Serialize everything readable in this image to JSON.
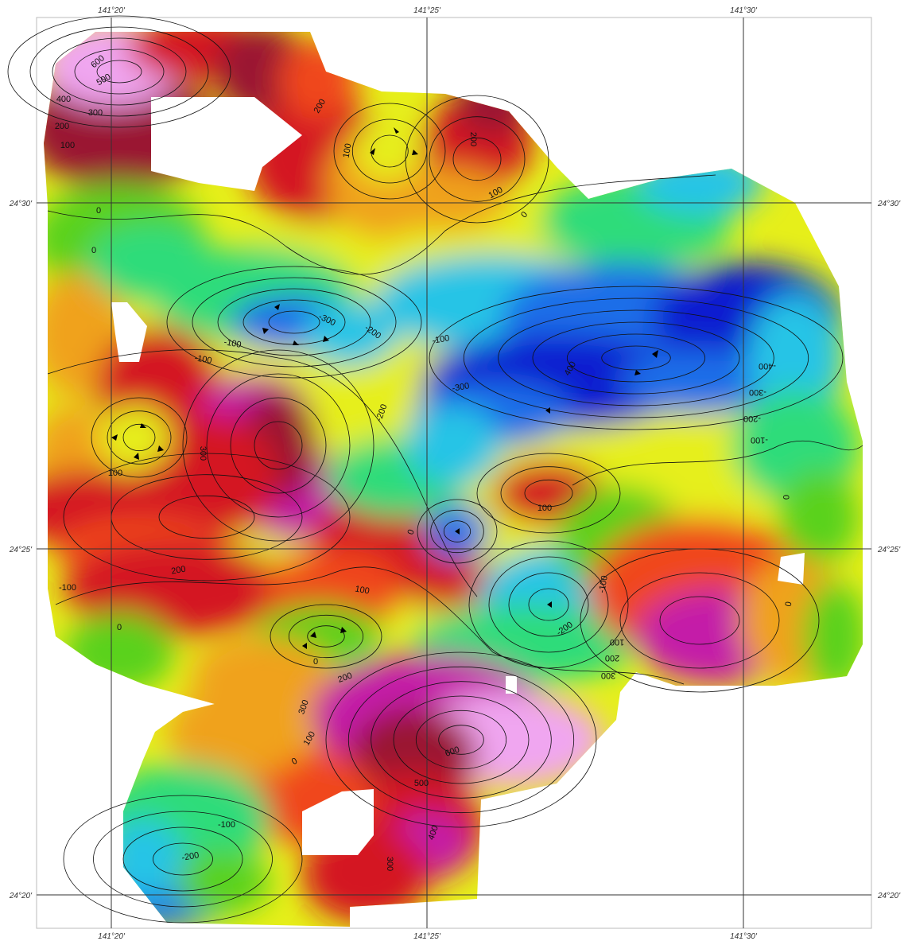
{
  "graticule": {
    "top_lon_labels": [
      "141°20'",
      "141°25'",
      "141°30'"
    ],
    "bottom_lon_labels": [
      "141°20'",
      "141°25'",
      "141°30'"
    ],
    "left_lat_labels": [
      "24°30'",
      "24°25'",
      "24°20'"
    ],
    "right_lat_labels": [
      "24°30'",
      "24°25'",
      "24°20'"
    ]
  },
  "color_scale": {
    "stops": [
      {
        "value": -450,
        "color": "#0a1fd0"
      },
      {
        "value": -300,
        "color": "#1f6ee8"
      },
      {
        "value": -200,
        "color": "#26c4e6"
      },
      {
        "value": -100,
        "color": "#2fdc7a"
      },
      {
        "value": 0,
        "color": "#5ad21a"
      },
      {
        "value": 50,
        "color": "#e6ef1a"
      },
      {
        "value": 100,
        "color": "#f0a21c"
      },
      {
        "value": 200,
        "color": "#f0461c"
      },
      {
        "value": 300,
        "color": "#d41820"
      },
      {
        "value": 400,
        "color": "#9a1230"
      },
      {
        "value": 500,
        "color": "#c41aa8"
      },
      {
        "value": 650,
        "color": "#f0a6f0"
      }
    ]
  },
  "contour_labels": [
    "600",
    "500",
    "400",
    "300",
    "200",
    "100",
    "200",
    "100",
    "200",
    "100",
    "0",
    "0",
    "0",
    "-300",
    "-200",
    "-100",
    "-100",
    "-100",
    "-300",
    "-200",
    "400",
    "-400",
    "-300",
    "-200",
    "-100",
    "300",
    "100",
    "100",
    "0",
    "0",
    "200",
    "-100",
    "100",
    "0",
    "-100",
    "-200",
    "100",
    "200",
    "300",
    "0",
    "200",
    "300",
    "100",
    "0",
    "600",
    "500",
    "400",
    "300",
    "-100",
    "-200",
    "0"
  ]
}
